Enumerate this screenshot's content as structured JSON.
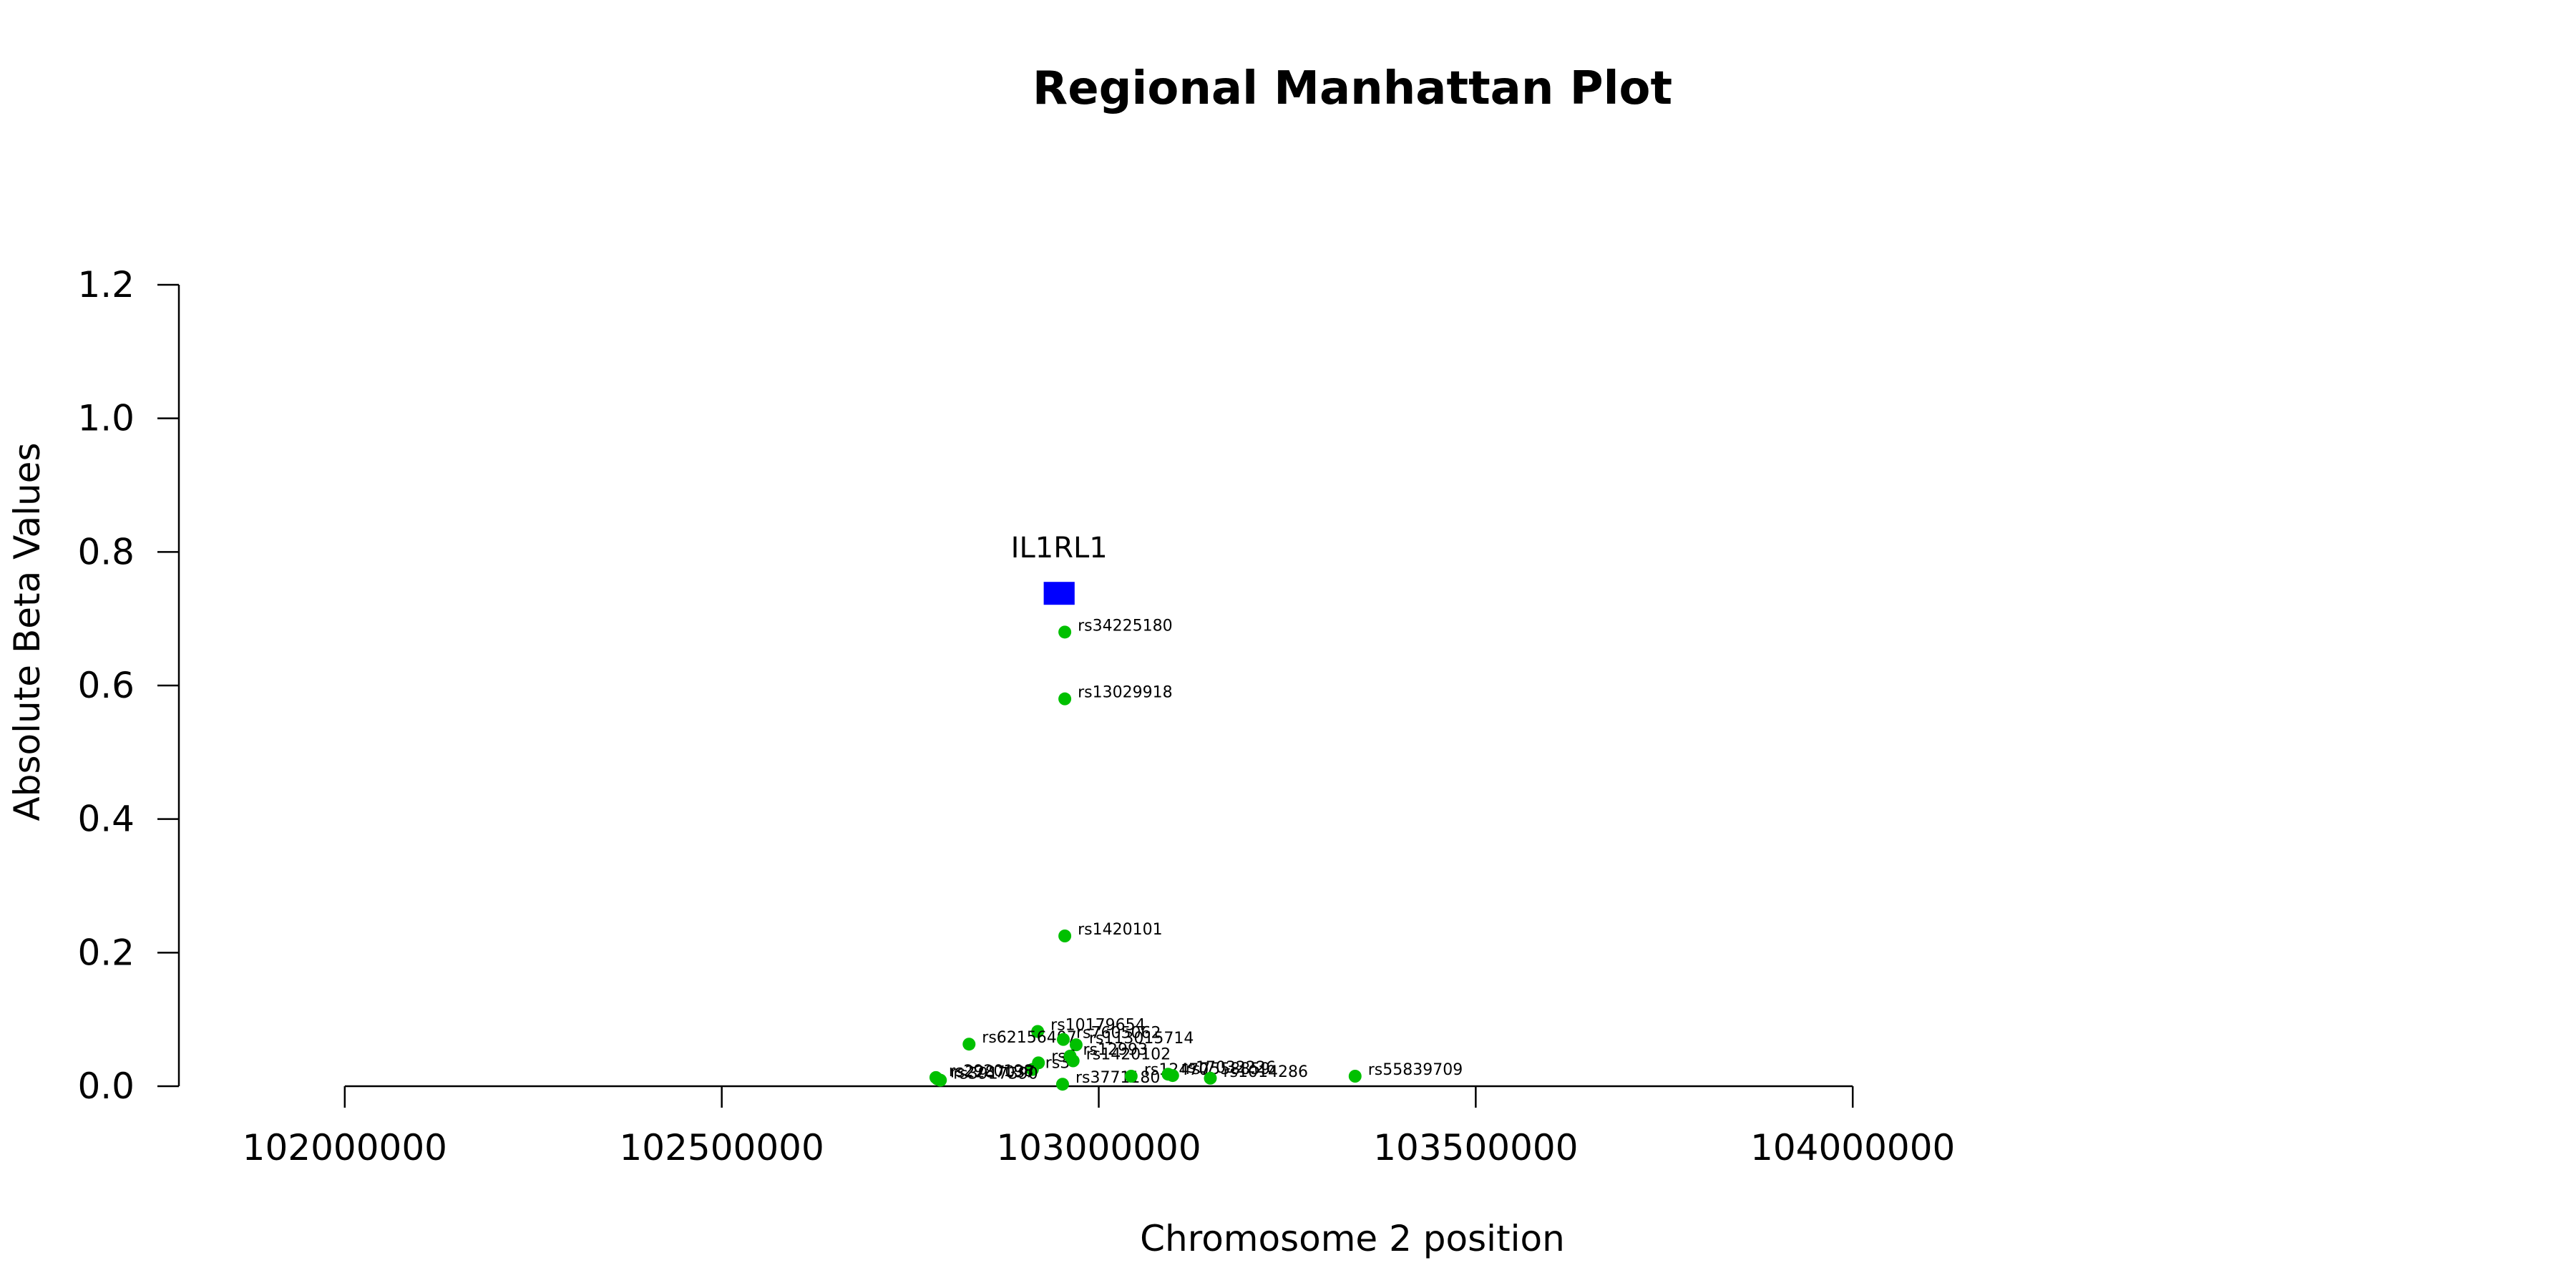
{
  "chart_data": {
    "type": "scatter",
    "title": "Regional Manhattan Plot",
    "xlabel": "Chromosome 2 position",
    "ylabel": "Absolute Beta Values",
    "xlim": [
      101780000,
      104480000
    ],
    "ylim": [
      0.0,
      1.2
    ],
    "xticks": [
      102000000,
      102500000,
      103000000,
      103500000,
      104000000
    ],
    "xtick_labels": [
      "102000000",
      "102500000",
      "103000000",
      "103500000",
      "104000000"
    ],
    "yticks": [
      0.0,
      0.2,
      0.4,
      0.6,
      0.8,
      1.0,
      1.2
    ],
    "ytick_labels": [
      "0.0",
      "0.2",
      "0.4",
      "0.6",
      "0.8",
      "1.0",
      "1.2"
    ],
    "grid": false,
    "point_color": "#00c000",
    "gene_color": "#0000ff",
    "genes": [
      {
        "name": "IL1RL1",
        "start": 102927000,
        "end": 102968000,
        "y": 0.738
      }
    ],
    "points": [
      {
        "label": "rs34225180",
        "x": 102955000,
        "y": 0.68
      },
      {
        "label": "rs13029918",
        "x": 102955000,
        "y": 0.58
      },
      {
        "label": "rs1420101",
        "x": 102955000,
        "y": 0.225
      },
      {
        "label": "rs10179654",
        "x": 102919000,
        "y": 0.082
      },
      {
        "label": "rs62156407",
        "x": 102828000,
        "y": 0.063
      },
      {
        "label": "rs7605062",
        "x": 102953000,
        "y": 0.07
      },
      {
        "label": "rs113015714",
        "x": 102970000,
        "y": 0.062
      },
      {
        "label": "rs6",
        "x": 102920000,
        "y": 0.035
      },
      {
        "label": "rs3",
        "x": 102912000,
        "y": 0.025
      },
      {
        "label": "rs12993",
        "x": 102962000,
        "y": 0.045
      },
      {
        "label": "rs1420102",
        "x": 102966000,
        "y": 0.038
      },
      {
        "label": "rs3771180",
        "x": 102952000,
        "y": 0.003
      },
      {
        "label": "rs12470",
        "x": 103043000,
        "y": 0.015
      },
      {
        "label": "rs17032226",
        "x": 103092000,
        "y": 0.018
      },
      {
        "label": "rs7558859",
        "x": 103098000,
        "y": 0.016
      },
      {
        "label": "rs1014286",
        "x": 103148000,
        "y": 0.012
      },
      {
        "label": "rs55839709",
        "x": 103340000,
        "y": 0.015
      },
      {
        "label": "rs2920198",
        "x": 102784000,
        "y": 0.013
      },
      {
        "label": "rs2287037",
        "x": 102786000,
        "y": 0.011
      },
      {
        "label": "rs3917390",
        "x": 102790000,
        "y": 0.009
      }
    ]
  }
}
